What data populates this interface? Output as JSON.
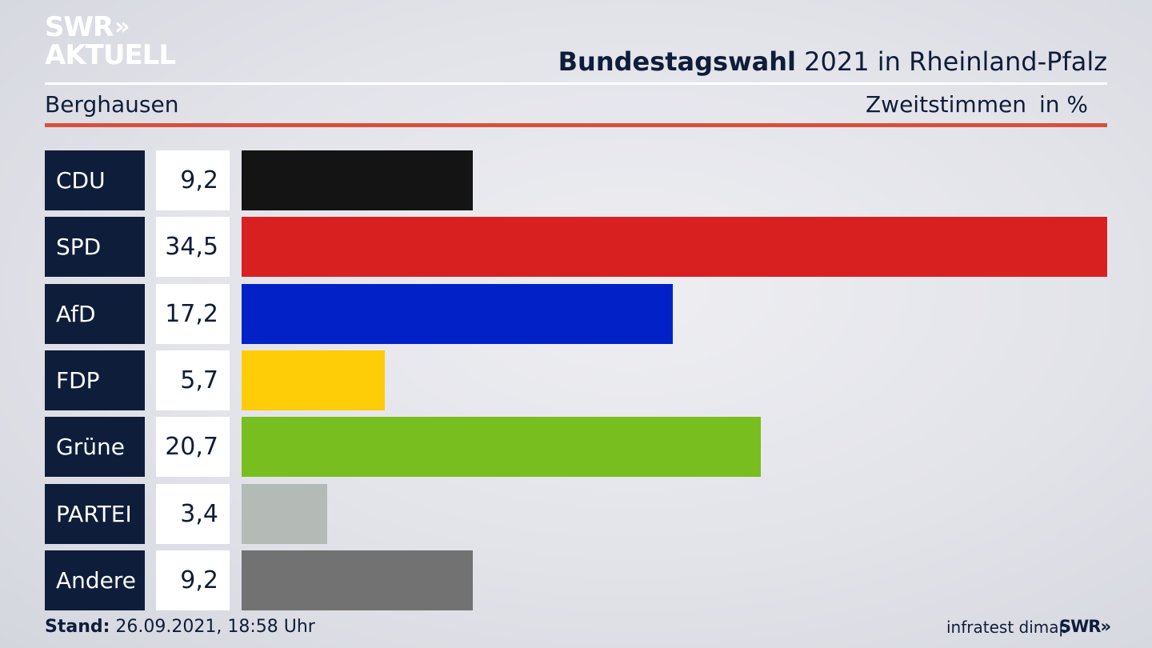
{
  "logo": {
    "line1": "SWR",
    "line2": "AKTUELL",
    "arrows": "»"
  },
  "header": {
    "title_bold": "Bundestagswahl",
    "title_rest": " 2021 in Rheinland-Pfalz",
    "region": "Berghausen",
    "measure": "Zweitstimmen",
    "unit": "in %"
  },
  "footer": {
    "stand_label": "Stand:",
    "stand_value": " 26.09.2021, 18:58 Uhr",
    "source": "infratest dimap",
    "brand": "SWR»"
  },
  "chart_data": {
    "type": "bar",
    "orientation": "horizontal",
    "categories": [
      "CDU",
      "SPD",
      "AfD",
      "FDP",
      "Grüne",
      "PARTEI",
      "Andere"
    ],
    "values": [
      9.2,
      34.5,
      17.2,
      5.7,
      20.7,
      3.4,
      9.2
    ],
    "value_labels": [
      "9,2",
      "34,5",
      "17,2",
      "5,7",
      "20,7",
      "3,4",
      "9,2"
    ],
    "colors": [
      "#141414",
      "#d82020",
      "#0222c8",
      "#ffcc08",
      "#78be1e",
      "#b4bab6",
      "#727272"
    ],
    "xlim": [
      0,
      34.5
    ]
  }
}
